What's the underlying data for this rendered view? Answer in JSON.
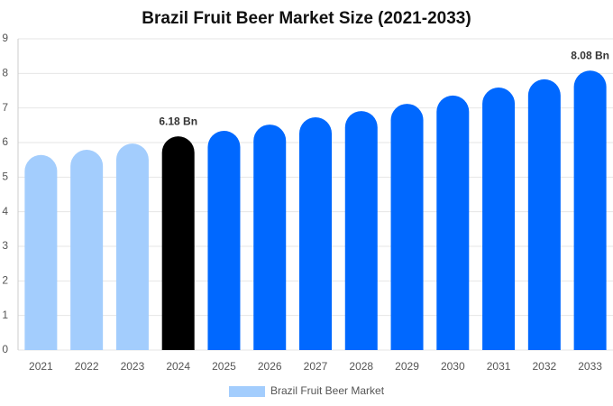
{
  "chart_data": {
    "type": "bar",
    "title": "Brazil Fruit Beer Market Size (2021-2033)",
    "categories": [
      "2021",
      "2022",
      "2023",
      "2024",
      "2025",
      "2026",
      "2027",
      "2028",
      "2029",
      "2030",
      "2031",
      "2032",
      "2033"
    ],
    "series": [
      {
        "name": "Brazil Fruit Beer Market",
        "color": "#a3cdfd",
        "values": [
          5.64,
          5.79,
          5.97,
          6.18,
          6.34,
          6.52,
          6.73,
          6.91,
          7.12,
          7.36,
          7.59,
          7.83,
          8.08
        ],
        "value_labels": [
          null,
          null,
          null,
          "6.18 Bn",
          null,
          null,
          null,
          null,
          null,
          null,
          null,
          null,
          "8.08 Bn"
        ],
        "bar_colors": [
          "#a3cdfd",
          "#a3cdfd",
          "#a3cdfd",
          "#000000",
          "#0068ff",
          "#0068ff",
          "#0068ff",
          "#0068ff",
          "#0068ff",
          "#0068ff",
          "#0068ff",
          "#0068ff",
          "#0068ff"
        ]
      }
    ],
    "ylim": [
      0,
      9
    ],
    "yticks": [
      0,
      1,
      2,
      3,
      4,
      5,
      6,
      7,
      8,
      9
    ],
    "grid": true,
    "legend": "bottom"
  }
}
